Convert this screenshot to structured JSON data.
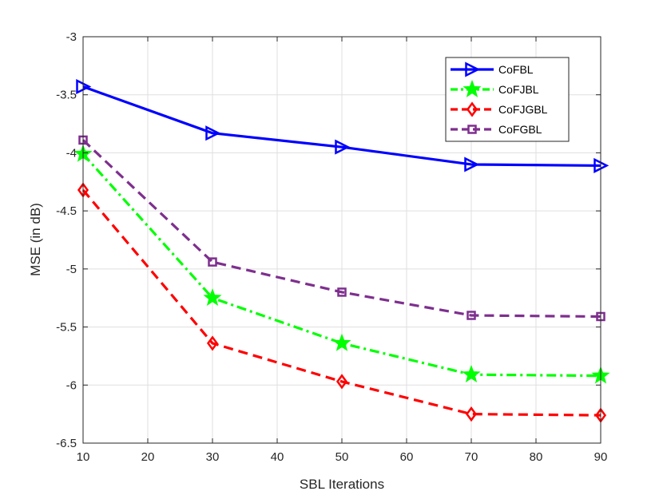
{
  "chart_data": {
    "type": "line",
    "title": "",
    "xlabel": "SBL Iterations",
    "ylabel": "MSE (in dB)",
    "xlim": [
      10,
      90
    ],
    "ylim": [
      -6.5,
      -3
    ],
    "xticks": [
      "10",
      "20",
      "30",
      "40",
      "50",
      "60",
      "70",
      "80",
      "90"
    ],
    "yticks": [
      "-3",
      "-3.5",
      "-4",
      "-4.5",
      "-5",
      "-5.5",
      "-6",
      "-6.5"
    ],
    "grid": true,
    "legend_position": "top-right",
    "x": [
      10,
      30,
      50,
      70,
      90
    ],
    "series": [
      {
        "name": "CoFBL",
        "values": [
          -3.43,
          -3.83,
          -3.95,
          -4.1,
          -4.11
        ],
        "color": "#0000ff",
        "dash": "solid",
        "marker": "triangle-right"
      },
      {
        "name": "CoFJBL",
        "values": [
          -4.01,
          -5.25,
          -5.64,
          -5.91,
          -5.92
        ],
        "color": "#00ff00",
        "dash": "dash-dot",
        "marker": "star"
      },
      {
        "name": "CoFJGBL",
        "values": [
          -4.32,
          -5.64,
          -5.97,
          -6.25,
          -6.26
        ],
        "color": "#ff0000",
        "dash": "dashed",
        "marker": "diamond"
      },
      {
        "name": "CoFGBL",
        "values": [
          -3.89,
          -4.94,
          -5.2,
          -5.4,
          -5.41
        ],
        "color": "#7e2f8e",
        "dash": "dashed",
        "marker": "square"
      }
    ]
  }
}
